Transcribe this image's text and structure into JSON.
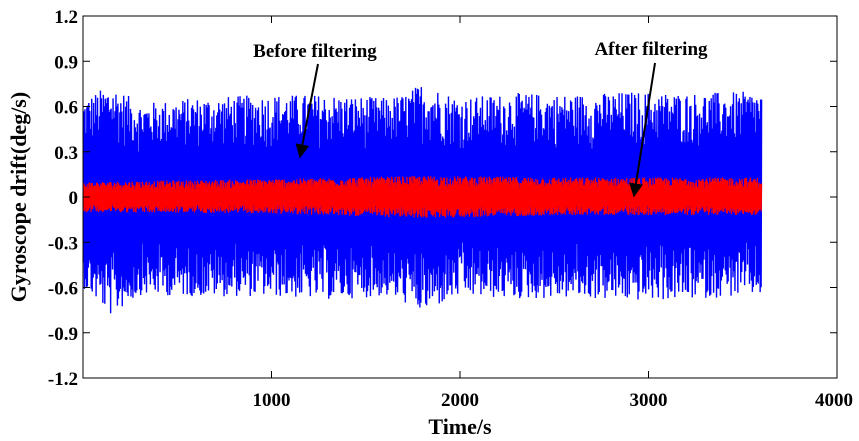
{
  "chart_data": {
    "type": "line",
    "title": "",
    "xlabel": "Time/s",
    "ylabel": "Gyroscope drift(deg/s)",
    "xlim": [
      0,
      4000
    ],
    "ylim": [
      -1.2,
      1.2
    ],
    "x_ticks": [
      1000,
      2000,
      3000,
      4000
    ],
    "x_tick_labels": [
      "1000",
      "2000",
      "3000",
      "4000"
    ],
    "y_ticks": [
      1.2,
      0.9,
      0.6,
      0.3,
      0,
      -0.3,
      -0.6,
      -0.9,
      -1.2
    ],
    "y_tick_labels": [
      "1.2",
      "0.9",
      "0.6",
      "0.3",
      "0",
      "-0.3",
      "-0.6",
      "-0.9",
      "-1.2"
    ],
    "grid": false,
    "legend": "none",
    "series": [
      {
        "name": "Before filtering",
        "color": "#0000ff",
        "x_range": [
          0,
          3600
        ],
        "envelope": {
          "x": [
            0,
            150,
            300,
            600,
            1000,
            1300,
            1600,
            1700,
            1800,
            2000,
            2300,
            2600,
            2900,
            3200,
            3600
          ],
          "upper": [
            0.65,
            0.75,
            0.62,
            0.66,
            0.68,
            0.68,
            0.66,
            0.68,
            0.76,
            0.66,
            0.69,
            0.68,
            0.7,
            0.69,
            0.7
          ],
          "lower": [
            -0.6,
            -0.79,
            -0.65,
            -0.66,
            -0.66,
            -0.68,
            -0.66,
            -0.7,
            -0.77,
            -0.66,
            -0.68,
            -0.67,
            -0.69,
            -0.68,
            -0.65
          ]
        }
      },
      {
        "name": "After filtering",
        "color": "#ff0000",
        "x_range": [
          0,
          3600
        ],
        "envelope": {
          "x": [
            0,
            1000,
            1800,
            2600,
            3600
          ],
          "upper": [
            0.1,
            0.12,
            0.14,
            0.13,
            0.13
          ],
          "lower": [
            -0.1,
            -0.11,
            -0.14,
            -0.12,
            -0.12
          ]
        }
      }
    ],
    "annotations": [
      {
        "text": "Before filtering",
        "points_to": {
          "x": 1150,
          "y": 0.25
        }
      },
      {
        "text": "After filtering",
        "points_to": {
          "x": 2920,
          "y": -0.02
        }
      }
    ]
  }
}
